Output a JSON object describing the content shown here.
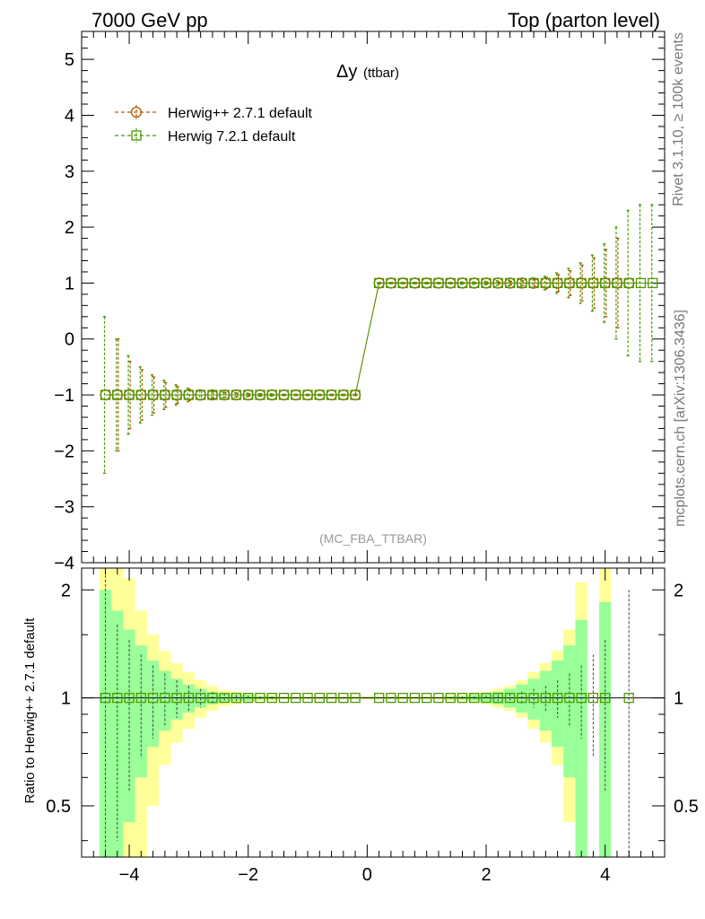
{
  "header": {
    "left": "7000 GeV pp",
    "right": "Top (parton level)"
  },
  "side_text": {
    "rivet": "Rivet 3.1.10, ≥ 100k events",
    "mcplots": "mcplots.cern.ch [arXiv:1306.3436]"
  },
  "plot": {
    "title_main": "Δy",
    "title_sub": "(ttbar)",
    "watermark": "(MC_FBA_TTBAR)",
    "ratio_ylabel": "Ratio to Herwig++ 2.7.1 default"
  },
  "colors": {
    "herwigpp": "#b35900",
    "herwig7": "#4d9900",
    "band_yellow": "#ffff99",
    "band_green": "#99ff99"
  },
  "chart_data": [
    {
      "type": "line",
      "panel": "main",
      "xlim": [
        -4.8,
        5.0
      ],
      "ylim": [
        -4.0,
        5.5
      ],
      "yticks": [
        -4,
        -3,
        -2,
        -1,
        0,
        1,
        2,
        3,
        4,
        5
      ],
      "ytick_labels": [
        "−4",
        "−3",
        "−2",
        "−1",
        "0",
        "1",
        "2",
        "3",
        "4",
        "5"
      ],
      "legend_position": "top-left",
      "x": [
        -4.4,
        -4.2,
        -4.0,
        -3.8,
        -3.6,
        -3.4,
        -3.2,
        -3.0,
        -2.8,
        -2.6,
        -2.4,
        -2.2,
        -2.0,
        -1.8,
        -1.6,
        -1.4,
        -1.2,
        -1.0,
        -0.8,
        -0.6,
        -0.4,
        -0.2,
        0.2,
        0.4,
        0.6,
        0.8,
        1.0,
        1.2,
        1.4,
        1.6,
        1.8,
        2.0,
        2.2,
        2.4,
        2.6,
        2.8,
        3.0,
        3.2,
        3.4,
        3.6,
        3.8,
        4.0,
        4.2,
        4.4,
        4.6,
        4.8
      ],
      "series": [
        {
          "name": "Herwig++ 2.7.1 default",
          "marker": "circle",
          "values": [
            -1,
            -1,
            -1,
            -1,
            -1,
            -1,
            -1,
            -1,
            -1,
            -1,
            -1,
            -1,
            -1,
            -1,
            -1,
            -1,
            -1,
            -1,
            -1,
            -1,
            -1,
            -1,
            1,
            1,
            1,
            1,
            1,
            1,
            1,
            1,
            1,
            1,
            1,
            1,
            1,
            1,
            1,
            1,
            1,
            1,
            1,
            1,
            1,
            1,
            null,
            null
          ],
          "errors": [
            0,
            1.0,
            0.6,
            0.45,
            0.32,
            0.22,
            0.15,
            0.1,
            0.08,
            0.06,
            0.04,
            0.03,
            0.02,
            0.02,
            0.01,
            0.01,
            0.01,
            0.01,
            0.01,
            0.01,
            0.01,
            0.01,
            0.01,
            0.01,
            0.01,
            0.01,
            0.01,
            0.01,
            0.01,
            0.01,
            0.01,
            0.02,
            0.02,
            0.03,
            0.04,
            0.06,
            0.1,
            0.15,
            0.22,
            0.32,
            0.45,
            0.6,
            0.8,
            0,
            0,
            0
          ]
        },
        {
          "name": "Herwig 7.2.1 default",
          "marker": "square",
          "values": [
            -1,
            -1,
            -1,
            -1,
            -1,
            -1,
            -1,
            -1,
            -1,
            -1,
            -1,
            -1,
            -1,
            -1,
            -1,
            -1,
            -1,
            -1,
            -1,
            -1,
            -1,
            -1,
            1,
            1,
            1,
            1,
            1,
            1,
            1,
            1,
            1,
            1,
            1,
            1,
            1,
            1,
            1,
            1,
            1,
            1,
            1,
            1,
            1,
            1,
            1,
            1
          ],
          "errors": [
            1.4,
            1.0,
            0.7,
            0.5,
            0.36,
            0.26,
            0.18,
            0.12,
            0.09,
            0.07,
            0.05,
            0.04,
            0.03,
            0.02,
            0.02,
            0.01,
            0.01,
            0.01,
            0.01,
            0.01,
            0.01,
            0.01,
            0.01,
            0.01,
            0.01,
            0.01,
            0.01,
            0.01,
            0.01,
            0.02,
            0.02,
            0.03,
            0.04,
            0.05,
            0.07,
            0.09,
            0.12,
            0.18,
            0.26,
            0.36,
            0.5,
            0.7,
            1.0,
            1.3,
            1.4,
            1.4
          ]
        }
      ]
    },
    {
      "type": "area",
      "panel": "ratio",
      "xlim": [
        -4.8,
        5.0
      ],
      "ylim": [
        0.36,
        2.3
      ],
      "log_y": true,
      "xticks": [
        -4,
        -2,
        0,
        2,
        4
      ],
      "xtick_labels": [
        "−4",
        "−2",
        "0",
        "2",
        "4"
      ],
      "yticks": [
        0.5,
        1,
        2
      ],
      "ytick_labels": [
        "0.5",
        "1",
        "2"
      ],
      "bin_edges": [
        -4.5,
        -4.3,
        -4.1,
        -3.9,
        -3.7,
        -3.5,
        -3.3,
        -3.1,
        -2.9,
        -2.7,
        -2.5,
        -2.3,
        -2.1,
        -1.9,
        -1.7,
        -1.5,
        -1.3,
        -1.1,
        -0.9,
        -0.7,
        -0.5,
        -0.3,
        -0.1,
        0.1,
        0.3,
        0.5,
        0.7,
        0.9,
        1.1,
        1.3,
        1.5,
        1.7,
        1.9,
        2.1,
        2.3,
        2.5,
        2.7,
        2.9,
        3.1,
        3.3,
        3.5,
        3.7,
        3.9,
        4.1,
        4.3,
        4.5
      ],
      "yellow_band_rel": [
        1.5,
        1.35,
        1.15,
        0.75,
        0.5,
        0.35,
        0.25,
        0.18,
        0.12,
        0.08,
        0.05,
        0.04,
        0.03,
        0.02,
        0.02,
        0.01,
        0.01,
        0.01,
        0.01,
        0.01,
        0.01,
        0.01,
        0.01,
        0.01,
        0.01,
        0.01,
        0.01,
        0.01,
        0.01,
        0.02,
        0.02,
        0.03,
        0.04,
        0.06,
        0.08,
        0.12,
        0.18,
        0.25,
        0.35,
        0.55,
        1.1,
        null,
        1.5,
        null,
        null
      ],
      "green_band_rel": [
        1.0,
        0.75,
        0.55,
        0.4,
        0.27,
        0.19,
        0.13,
        0.09,
        0.06,
        0.04,
        0.03,
        0.02,
        0.02,
        0.01,
        0.01,
        0.005,
        0.005,
        0.005,
        0.005,
        0.005,
        0.005,
        0.005,
        0.005,
        0.005,
        0.005,
        0.005,
        0.005,
        0.005,
        0.005,
        0.01,
        0.01,
        0.02,
        0.03,
        0.04,
        0.06,
        0.09,
        0.13,
        0.19,
        0.27,
        0.4,
        0.65,
        null,
        0.85,
        null,
        null
      ],
      "ratio_points_x": [
        -4.4,
        -4.2,
        -4.0,
        -3.8,
        -3.6,
        -3.4,
        -3.2,
        -3.0,
        -2.8,
        -2.6,
        -2.4,
        -2.2,
        -2.0,
        -1.8,
        -1.6,
        -1.4,
        -1.2,
        -1.0,
        -0.8,
        -0.6,
        -0.4,
        -0.2,
        0.2,
        0.4,
        0.6,
        0.8,
        1.0,
        1.2,
        1.4,
        1.6,
        1.8,
        2.0,
        2.2,
        2.4,
        2.6,
        2.8,
        3.0,
        3.2,
        3.4,
        3.6,
        3.8,
        4.0,
        4.4
      ],
      "ratio_values": [
        1,
        1,
        1,
        1,
        1,
        1,
        1,
        1,
        1,
        1,
        1,
        1,
        1,
        1,
        1,
        1,
        1,
        1,
        1,
        1,
        1,
        1,
        1,
        1,
        1,
        1,
        1,
        1,
        1,
        1,
        1,
        1,
        1,
        1,
        1,
        1,
        1,
        1,
        1,
        1,
        1,
        1,
        1
      ],
      "ratio_errors_rel": [
        1.2,
        0.6,
        0.45,
        0.32,
        0.23,
        0.17,
        0.12,
        0.08,
        0.06,
        0.04,
        0.03,
        0.02,
        0.015,
        0.01,
        0.01,
        0.005,
        0.005,
        0.005,
        0.005,
        0.005,
        0.005,
        0.005,
        0.005,
        0.005,
        0.005,
        0.005,
        0.005,
        0.005,
        0.005,
        0.01,
        0.01,
        0.015,
        0.02,
        0.03,
        0.04,
        0.06,
        0.08,
        0.12,
        0.17,
        0.23,
        0.32,
        0.45,
        1.0
      ]
    }
  ]
}
